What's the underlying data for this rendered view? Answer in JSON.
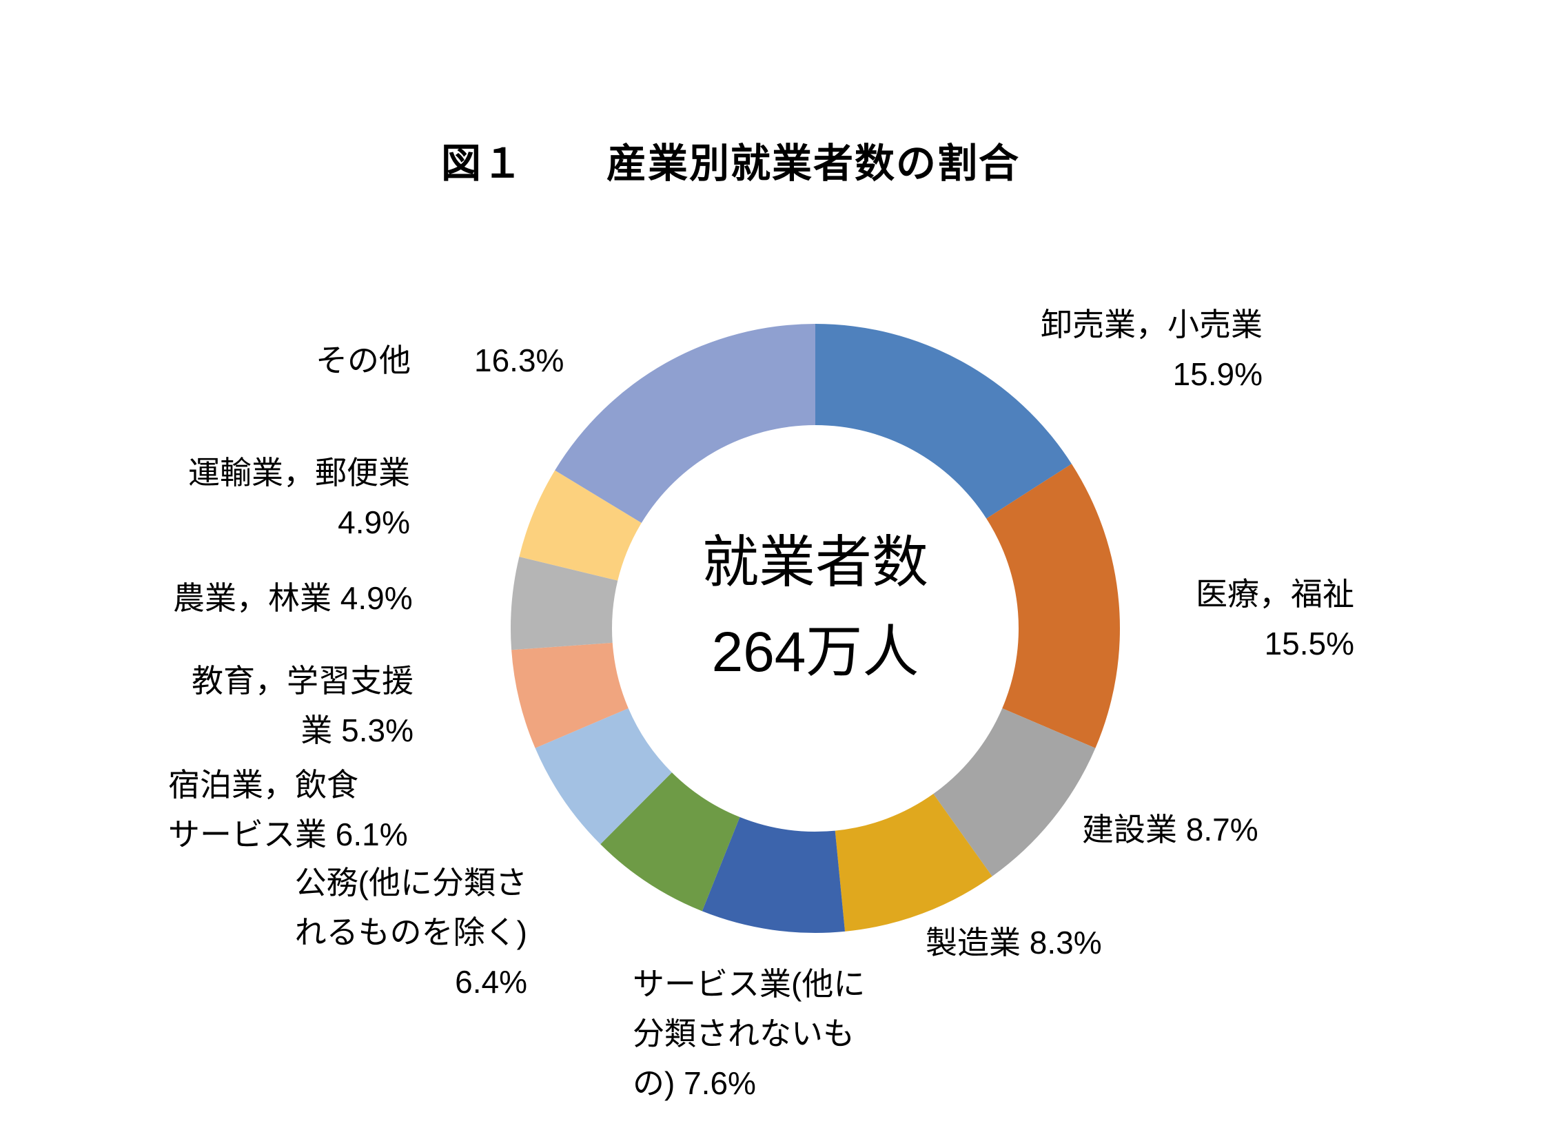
{
  "chart_data": {
    "type": "pie",
    "subtype": "donut",
    "title": "図１　　産業別就業者数の割合",
    "center_text": [
      "就業者数",
      "264万人"
    ],
    "legend_position": "none",
    "unit": "%",
    "categories": [
      "卸売業，小売業",
      "医療，福祉",
      "建設業",
      "製造業",
      "サービス業(他に分類されないもの)",
      "公務(他に分類されるものを除く)",
      "宿泊業，飲食サービス業",
      "教育，学習支援業",
      "農業，林業",
      "運輸業，郵便業",
      "その他"
    ],
    "values": [
      15.9,
      15.5,
      8.7,
      8.3,
      7.6,
      6.4,
      6.1,
      5.3,
      4.9,
      4.9,
      16.3
    ],
    "slices": [
      {
        "id": "wholesale-retail",
        "name": "卸売業，小売業",
        "value": 15.9,
        "color": "#4F81BD",
        "label_lines": [
          "卸売業，小売業",
          "15.9%"
        ]
      },
      {
        "id": "medical-welfare",
        "name": "医療，福祉",
        "value": 15.5,
        "color": "#D2702C",
        "label_lines": [
          "医療，福祉",
          "15.5%"
        ]
      },
      {
        "id": "construction",
        "name": "建設業",
        "value": 8.7,
        "color": "#A5A5A5",
        "label_lines": [
          "建設業 8.7%"
        ]
      },
      {
        "id": "manufacturing",
        "name": "製造業",
        "value": 8.3,
        "color": "#E0A81E",
        "label_lines": [
          "製造業 8.3%"
        ]
      },
      {
        "id": "services-nec",
        "name": "サービス業(他に分類されないもの)",
        "value": 7.6,
        "color": "#3C64AC",
        "label_lines": [
          "サービス業(他に",
          "分類されないも",
          "の) 7.6%"
        ]
      },
      {
        "id": "public-service",
        "name": "公務(他に分類されるものを除く)",
        "value": 6.4,
        "color": "#6E9B46",
        "label_lines": [
          "公務(他に分類さ",
          "れるものを除く)",
          "6.4%"
        ]
      },
      {
        "id": "accommodation-food",
        "name": "宿泊業，飲食サービス業",
        "value": 6.1,
        "color": "#A3C1E3",
        "label_lines": [
          "宿泊業，飲食",
          "サービス業 6.1%"
        ]
      },
      {
        "id": "education",
        "name": "教育，学習支援業",
        "value": 5.3,
        "color": "#F0A57F",
        "label_lines": [
          "教育，学習支援",
          "業 5.3%"
        ]
      },
      {
        "id": "agriculture-forestry",
        "name": "農業，林業",
        "value": 4.9,
        "color": "#B5B5B5",
        "label_lines": [
          "農業，林業 4.9%"
        ]
      },
      {
        "id": "transport-postal",
        "name": "運輸業，郵便業",
        "value": 4.9,
        "color": "#FCD17E",
        "label_lines": [
          "運輸業，郵便業",
          "4.9%"
        ]
      },
      {
        "id": "other",
        "name": "その他",
        "value": 16.3,
        "color": "#8FA0D0",
        "label_lines": [
          "その他　　16.3%"
        ]
      }
    ]
  },
  "colors": {
    "background": "#ffffff",
    "text": "#000000"
  }
}
